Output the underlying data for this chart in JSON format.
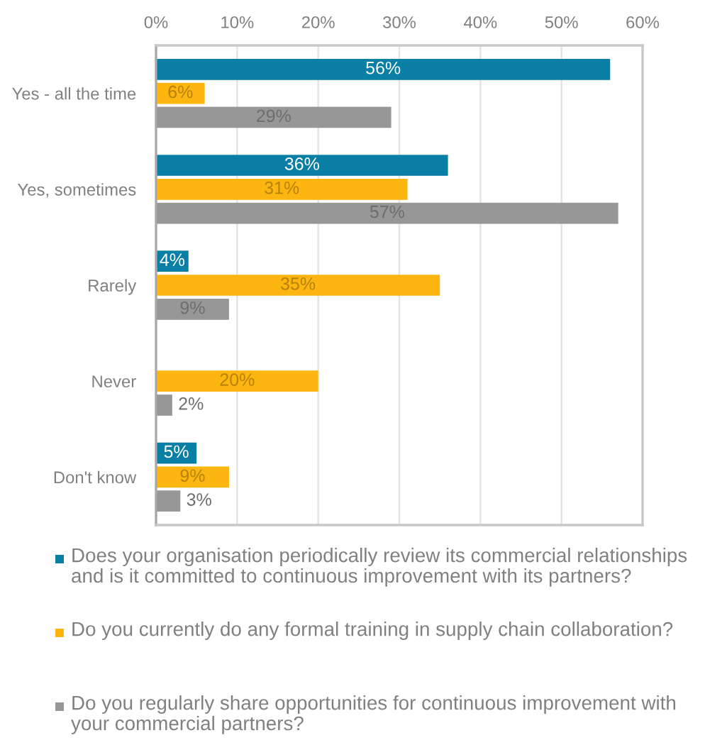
{
  "chart_data": {
    "type": "bar",
    "orientation": "horizontal",
    "categories": [
      "Yes - all the time",
      "Yes, sometimes",
      "Rarely",
      "Never",
      "Don't know"
    ],
    "series": [
      {
        "name": "Does your organisation periodically review its commercial relationships and is it committed to continuous improvement with its partners?",
        "color": "#0a7fa6",
        "values": [
          56,
          36,
          4,
          null,
          5
        ],
        "value_labels": [
          "56%",
          "36%",
          "4%",
          null,
          "5%"
        ]
      },
      {
        "name": "Do you currently do any formal training in supply chain collaboration?",
        "color": "#fdb50f",
        "values": [
          6,
          31,
          35,
          20,
          9
        ],
        "value_labels": [
          "6%",
          "31%",
          "35%",
          "20%",
          "9%"
        ]
      },
      {
        "name": "Do you regularly share opportunities for continuous improvement with your commercial partners?",
        "color": "#979797",
        "values": [
          29,
          57,
          9,
          2,
          3
        ],
        "value_labels": [
          "29%",
          "57%",
          "9%",
          "2%",
          "3%"
        ]
      }
    ],
    "xlim": [
      0,
      60
    ],
    "xticks": [
      {
        "value": 0,
        "label": "0%"
      },
      {
        "value": 10,
        "label": "10%"
      },
      {
        "value": 20,
        "label": "20%"
      },
      {
        "value": 30,
        "label": "30%"
      },
      {
        "value": 40,
        "label": "40%"
      },
      {
        "value": 50,
        "label": "50%"
      },
      {
        "value": 60,
        "label": "60%"
      }
    ],
    "grid": "x",
    "legend": "bottom"
  }
}
